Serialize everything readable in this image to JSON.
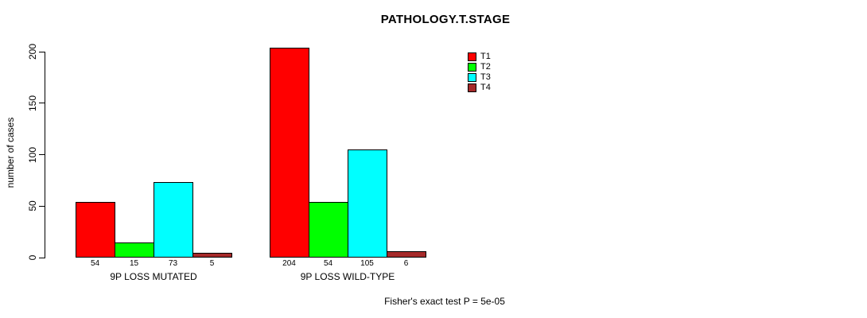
{
  "chart_data": {
    "type": "bar",
    "title": "PATHOLOGY.T.STAGE",
    "ylabel": "number of cases",
    "xlabel": "",
    "categories": [
      "9P LOSS MUTATED",
      "9P LOSS WILD-TYPE"
    ],
    "series": [
      {
        "name": "T1",
        "color": "#FF0000",
        "values": [
          54,
          204
        ]
      },
      {
        "name": "T2",
        "color": "#00FF00",
        "values": [
          15,
          54
        ]
      },
      {
        "name": "T3",
        "color": "#00FFFF",
        "values": [
          73,
          105
        ]
      },
      {
        "name": "T4",
        "color": "#A52A2A",
        "values": [
          5,
          6
        ]
      }
    ],
    "ylim": [
      0,
      200
    ],
    "yticks": [
      0,
      50,
      100,
      150,
      200
    ],
    "bar_value_labels": true,
    "grid": false,
    "legend_position": "top-right",
    "annotation": "Fisher's exact test P = 5e-05"
  }
}
